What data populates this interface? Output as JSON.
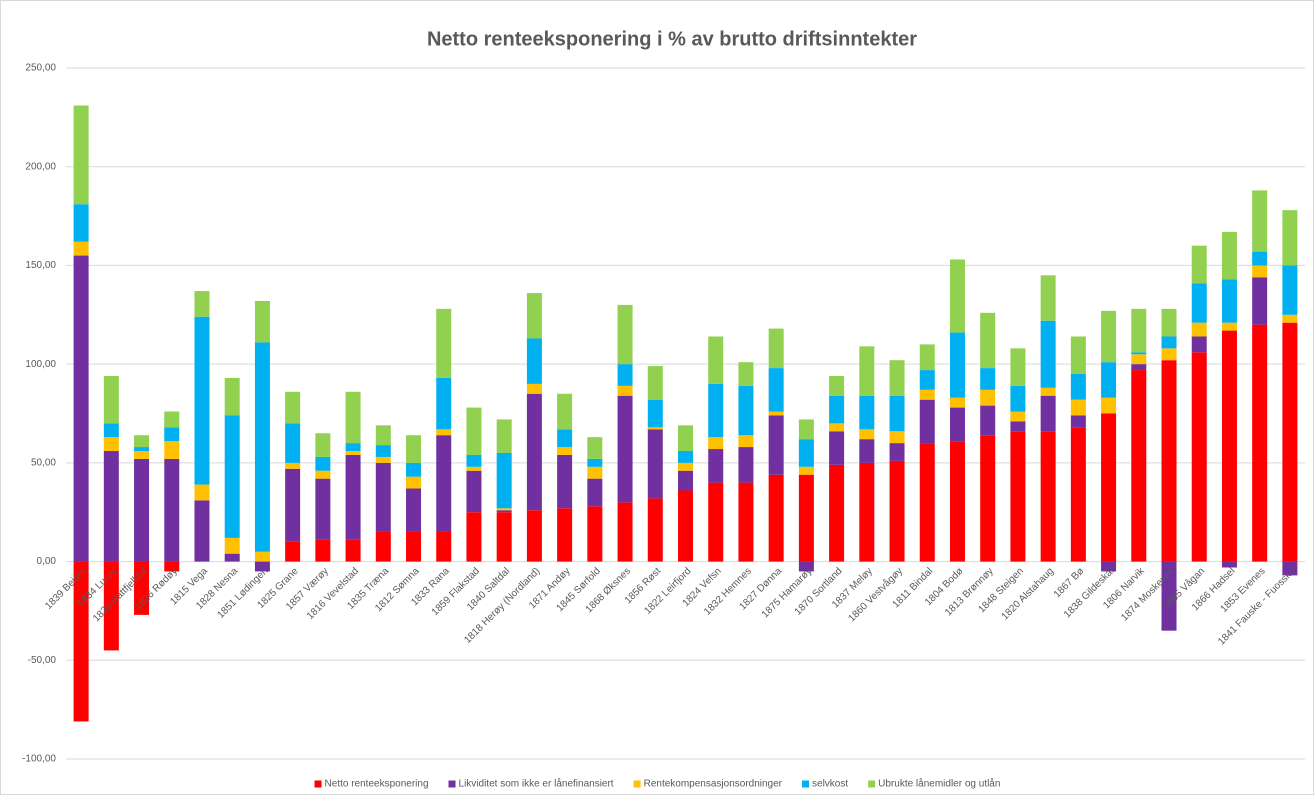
{
  "chart_data": {
    "type": "stacked_bar",
    "title": "Netto renteeksponering i % av brutto driftsinntekter",
    "categories": [
      "1839 Beiarn",
      "1834 Lurøy",
      "1826 Hattfjelldal",
      "1836 Rødøy",
      "1815 Vega",
      "1828 Nesna",
      "1851 Lødingen",
      "1825 Grane",
      "1857 Værøy",
      "1816 Vevelstad",
      "1835 Træna",
      "1812 Sømna",
      "1833 Rana",
      "1859 Flakstad",
      "1840 Saltdal",
      "1818 Herøy (Nordland)",
      "1871 Andøy",
      "1845 Sørfold",
      "1868 Øksnes",
      "1856 Røst",
      "1822 Leirfjord",
      "1824 Vefsn",
      "1832 Hemnes",
      "1827 Dønna",
      "1875 Hamarøy",
      "1870 Sortland",
      "1837 Meløy",
      "1860 Vestvågøy",
      "1811 Bindal",
      "1804 Bodø",
      "1813 Brønnøy",
      "1848 Steigen",
      "1820 Alstahaug",
      "1867 Bø",
      "1838 Gildeskål",
      "1806 Narvik",
      "1874 Moskenes",
      "1865 Vågan",
      "1866 Hadsel",
      "1853 Evenes",
      "1841 Fauske - Fuossko"
    ],
    "series": [
      {
        "name": "Netto renteeksponering",
        "color": "#ff0000",
        "values": [
          -81,
          -45,
          -27,
          -5,
          0,
          0,
          0,
          10,
          11,
          11,
          15,
          15,
          15,
          25,
          25,
          26,
          27,
          28,
          30,
          32,
          36,
          40,
          40,
          44,
          44,
          49,
          50,
          51,
          60,
          61,
          64,
          66,
          66,
          68,
          75,
          97,
          102,
          106,
          117,
          120,
          121
        ]
      },
      {
        "name": "Likviditet som ikke er lånefinansiert",
        "color": "#7030a0",
        "values": [
          155,
          56,
          52,
          52,
          31,
          4,
          -5,
          37,
          31,
          43,
          35,
          22,
          49,
          21,
          1,
          59,
          27,
          14,
          54,
          35,
          10,
          17,
          18,
          30,
          -5,
          17,
          12,
          9,
          22,
          17,
          15,
          5,
          18,
          6,
          -5,
          3,
          -35,
          8,
          -3,
          24,
          -7
        ]
      },
      {
        "name": "Rentekompensasjonsordninger",
        "color": "#ffc000",
        "values": [
          7,
          7,
          4,
          9,
          8,
          8,
          5,
          3,
          4,
          2,
          3,
          6,
          3,
          2,
          1,
          5,
          4,
          6,
          5,
          1,
          4,
          6,
          6,
          2,
          4,
          4,
          5,
          6,
          5,
          5,
          8,
          5,
          4,
          8,
          8,
          5,
          6,
          7,
          4,
          6,
          4
        ]
      },
      {
        "name": "selvkost",
        "color": "#00b0f0",
        "values": [
          19,
          7,
          2,
          7,
          85,
          62,
          106,
          20,
          7,
          4,
          6,
          7,
          26,
          6,
          28,
          23,
          9,
          4,
          11,
          14,
          6,
          27,
          25,
          22,
          14,
          14,
          17,
          18,
          10,
          33,
          11,
          13,
          34,
          13,
          18,
          1,
          6,
          20,
          22,
          7,
          25
        ]
      },
      {
        "name": "Ubrukte lånemidler og utlån",
        "color": "#92d050",
        "values": [
          50,
          24,
          6,
          8,
          13,
          19,
          21,
          16,
          12,
          26,
          10,
          14,
          35,
          24,
          17,
          23,
          18,
          11,
          30,
          17,
          13,
          24,
          12,
          20,
          10,
          10,
          25,
          18,
          13,
          37,
          28,
          19,
          23,
          19,
          26,
          22,
          14,
          19,
          24,
          31,
          28
        ]
      }
    ],
    "ylim": [
      -100,
      250
    ],
    "yticks": [
      {
        "value": -100,
        "label": "-100,00"
      },
      {
        "value": -50,
        "label": "-50,00"
      },
      {
        "value": 0,
        "label": "0,00"
      },
      {
        "value": 50,
        "label": "50,00"
      },
      {
        "value": 100,
        "label": "100,00"
      },
      {
        "value": 150,
        "label": "150,00"
      },
      {
        "value": 200,
        "label": "200,00"
      },
      {
        "value": 250,
        "label": "250,00"
      }
    ],
    "grid": true,
    "legend": "bottom"
  }
}
